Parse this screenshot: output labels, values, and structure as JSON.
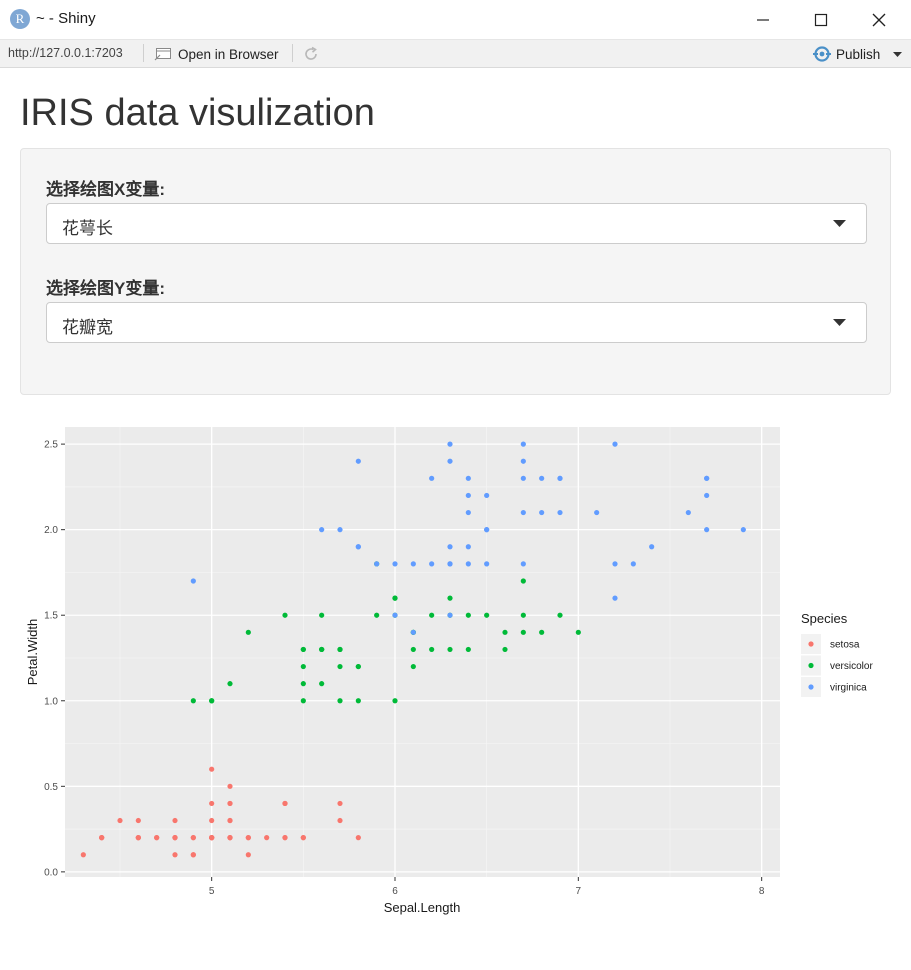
{
  "window": {
    "icon_letter": "R",
    "title": "~ - Shiny"
  },
  "toolbar": {
    "url": "http://127.0.0.1:7203",
    "open_in_browser": "Open in Browser",
    "publish": "Publish"
  },
  "page": {
    "title": "IRIS data visulization"
  },
  "inputs": {
    "x_label": "选择绘图X变量:",
    "x_value": "花萼长",
    "y_label": "选择绘图Y变量:",
    "y_value": "花瓣宽"
  },
  "colors": {
    "setosa": "#f8766d",
    "versicolor": "#00ba38",
    "virginica": "#619cff",
    "panel_bg": "#ebebeb"
  },
  "chart_data": {
    "type": "scatter",
    "xlabel": "Sepal.Length",
    "ylabel": "Petal.Width",
    "xlim": [
      4.2,
      8.1
    ],
    "ylim": [
      -0.03,
      2.6
    ],
    "xticks": [
      5,
      6,
      7,
      8
    ],
    "yticks": [
      "0.0",
      "0.5",
      "1.0",
      "1.5",
      "2.0",
      "2.5"
    ],
    "grid": true,
    "legend_title": "Species",
    "legend_position": "right",
    "series": [
      {
        "name": "setosa",
        "points": [
          [
            5.1,
            0.2
          ],
          [
            4.9,
            0.2
          ],
          [
            4.7,
            0.2
          ],
          [
            4.6,
            0.2
          ],
          [
            5.0,
            0.2
          ],
          [
            5.4,
            0.4
          ],
          [
            4.6,
            0.3
          ],
          [
            5.0,
            0.2
          ],
          [
            4.4,
            0.2
          ],
          [
            4.9,
            0.1
          ],
          [
            5.4,
            0.2
          ],
          [
            4.8,
            0.2
          ],
          [
            4.8,
            0.1
          ],
          [
            4.3,
            0.1
          ],
          [
            5.8,
            0.2
          ],
          [
            5.7,
            0.4
          ],
          [
            5.4,
            0.4
          ],
          [
            5.1,
            0.3
          ],
          [
            5.7,
            0.3
          ],
          [
            5.1,
            0.3
          ],
          [
            5.4,
            0.2
          ],
          [
            5.1,
            0.4
          ],
          [
            4.6,
            0.2
          ],
          [
            5.1,
            0.5
          ],
          [
            4.8,
            0.2
          ],
          [
            5.0,
            0.2
          ],
          [
            5.0,
            0.4
          ],
          [
            5.2,
            0.2
          ],
          [
            5.2,
            0.2
          ],
          [
            4.7,
            0.2
          ],
          [
            4.8,
            0.2
          ],
          [
            5.4,
            0.4
          ],
          [
            5.2,
            0.1
          ],
          [
            5.5,
            0.2
          ],
          [
            4.9,
            0.2
          ],
          [
            5.0,
            0.2
          ],
          [
            5.5,
            0.2
          ],
          [
            4.9,
            0.1
          ],
          [
            4.4,
            0.2
          ],
          [
            5.1,
            0.2
          ],
          [
            5.0,
            0.3
          ],
          [
            4.5,
            0.3
          ],
          [
            4.4,
            0.2
          ],
          [
            5.0,
            0.6
          ],
          [
            5.1,
            0.4
          ],
          [
            4.8,
            0.3
          ],
          [
            5.1,
            0.2
          ],
          [
            4.6,
            0.2
          ],
          [
            5.3,
            0.2
          ],
          [
            5.0,
            0.2
          ]
        ]
      },
      {
        "name": "versicolor",
        "points": [
          [
            7.0,
            1.4
          ],
          [
            6.4,
            1.5
          ],
          [
            6.9,
            1.5
          ],
          [
            5.5,
            1.3
          ],
          [
            6.5,
            1.5
          ],
          [
            5.7,
            1.3
          ],
          [
            6.3,
            1.6
          ],
          [
            4.9,
            1.0
          ],
          [
            6.6,
            1.3
          ],
          [
            5.2,
            1.4
          ],
          [
            5.0,
            1.0
          ],
          [
            5.9,
            1.5
          ],
          [
            6.0,
            1.0
          ],
          [
            6.1,
            1.4
          ],
          [
            5.6,
            1.3
          ],
          [
            6.7,
            1.4
          ],
          [
            5.6,
            1.5
          ],
          [
            5.8,
            1.0
          ],
          [
            6.2,
            1.5
          ],
          [
            5.6,
            1.1
          ],
          [
            5.9,
            1.8
          ],
          [
            6.1,
            1.3
          ],
          [
            6.3,
            1.5
          ],
          [
            6.1,
            1.2
          ],
          [
            6.4,
            1.3
          ],
          [
            6.6,
            1.4
          ],
          [
            6.8,
            1.4
          ],
          [
            6.7,
            1.7
          ],
          [
            6.0,
            1.5
          ],
          [
            5.7,
            1.0
          ],
          [
            5.5,
            1.1
          ],
          [
            5.5,
            1.0
          ],
          [
            5.8,
            1.2
          ],
          [
            6.0,
            1.6
          ],
          [
            5.4,
            1.5
          ],
          [
            6.0,
            1.6
          ],
          [
            6.7,
            1.5
          ],
          [
            6.3,
            1.3
          ],
          [
            5.6,
            1.3
          ],
          [
            5.5,
            1.3
          ],
          [
            5.5,
            1.2
          ],
          [
            6.1,
            1.4
          ],
          [
            5.8,
            1.2
          ],
          [
            5.0,
            1.0
          ],
          [
            5.6,
            1.3
          ],
          [
            5.7,
            1.2
          ],
          [
            5.7,
            1.3
          ],
          [
            6.2,
            1.3
          ],
          [
            5.1,
            1.1
          ],
          [
            5.7,
            1.3
          ]
        ]
      },
      {
        "name": "virginica",
        "points": [
          [
            6.3,
            2.5
          ],
          [
            5.8,
            1.9
          ],
          [
            7.1,
            2.1
          ],
          [
            6.3,
            1.8
          ],
          [
            6.5,
            2.2
          ],
          [
            7.6,
            2.1
          ],
          [
            4.9,
            1.7
          ],
          [
            7.3,
            1.8
          ],
          [
            6.7,
            1.8
          ],
          [
            7.2,
            2.5
          ],
          [
            6.5,
            2.0
          ],
          [
            6.4,
            1.9
          ],
          [
            6.8,
            2.1
          ],
          [
            5.7,
            2.0
          ],
          [
            5.8,
            2.4
          ],
          [
            6.4,
            2.3
          ],
          [
            6.5,
            1.8
          ],
          [
            7.7,
            2.2
          ],
          [
            7.7,
            2.3
          ],
          [
            6.0,
            1.5
          ],
          [
            6.9,
            2.3
          ],
          [
            5.6,
            2.0
          ],
          [
            7.7,
            2.0
          ],
          [
            6.3,
            1.8
          ],
          [
            6.7,
            2.1
          ],
          [
            7.2,
            1.8
          ],
          [
            6.2,
            1.8
          ],
          [
            6.1,
            1.8
          ],
          [
            6.4,
            2.1
          ],
          [
            7.2,
            1.6
          ],
          [
            7.4,
            1.9
          ],
          [
            7.9,
            2.0
          ],
          [
            6.4,
            2.2
          ],
          [
            6.3,
            1.5
          ],
          [
            6.1,
            1.4
          ],
          [
            7.7,
            2.3
          ],
          [
            6.3,
            2.4
          ],
          [
            6.4,
            1.8
          ],
          [
            6.0,
            1.8
          ],
          [
            6.9,
            2.1
          ],
          [
            6.7,
            2.4
          ],
          [
            6.9,
            2.3
          ],
          [
            5.8,
            1.9
          ],
          [
            6.8,
            2.3
          ],
          [
            6.7,
            2.5
          ],
          [
            6.7,
            2.3
          ],
          [
            6.3,
            1.9
          ],
          [
            6.5,
            2.0
          ],
          [
            6.2,
            2.3
          ],
          [
            5.9,
            1.8
          ]
        ]
      }
    ]
  }
}
